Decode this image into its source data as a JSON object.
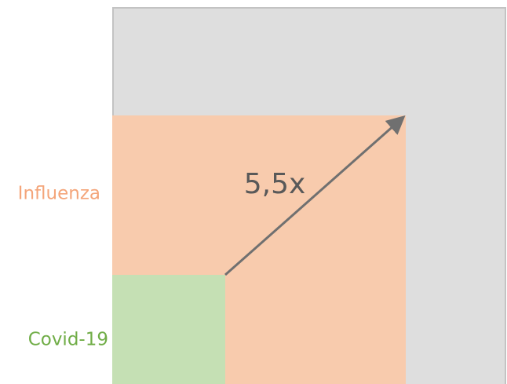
{
  "labels": {
    "influenza": "Influenza",
    "covid": "Covid-19",
    "ratio": "5,5x"
  }
}
